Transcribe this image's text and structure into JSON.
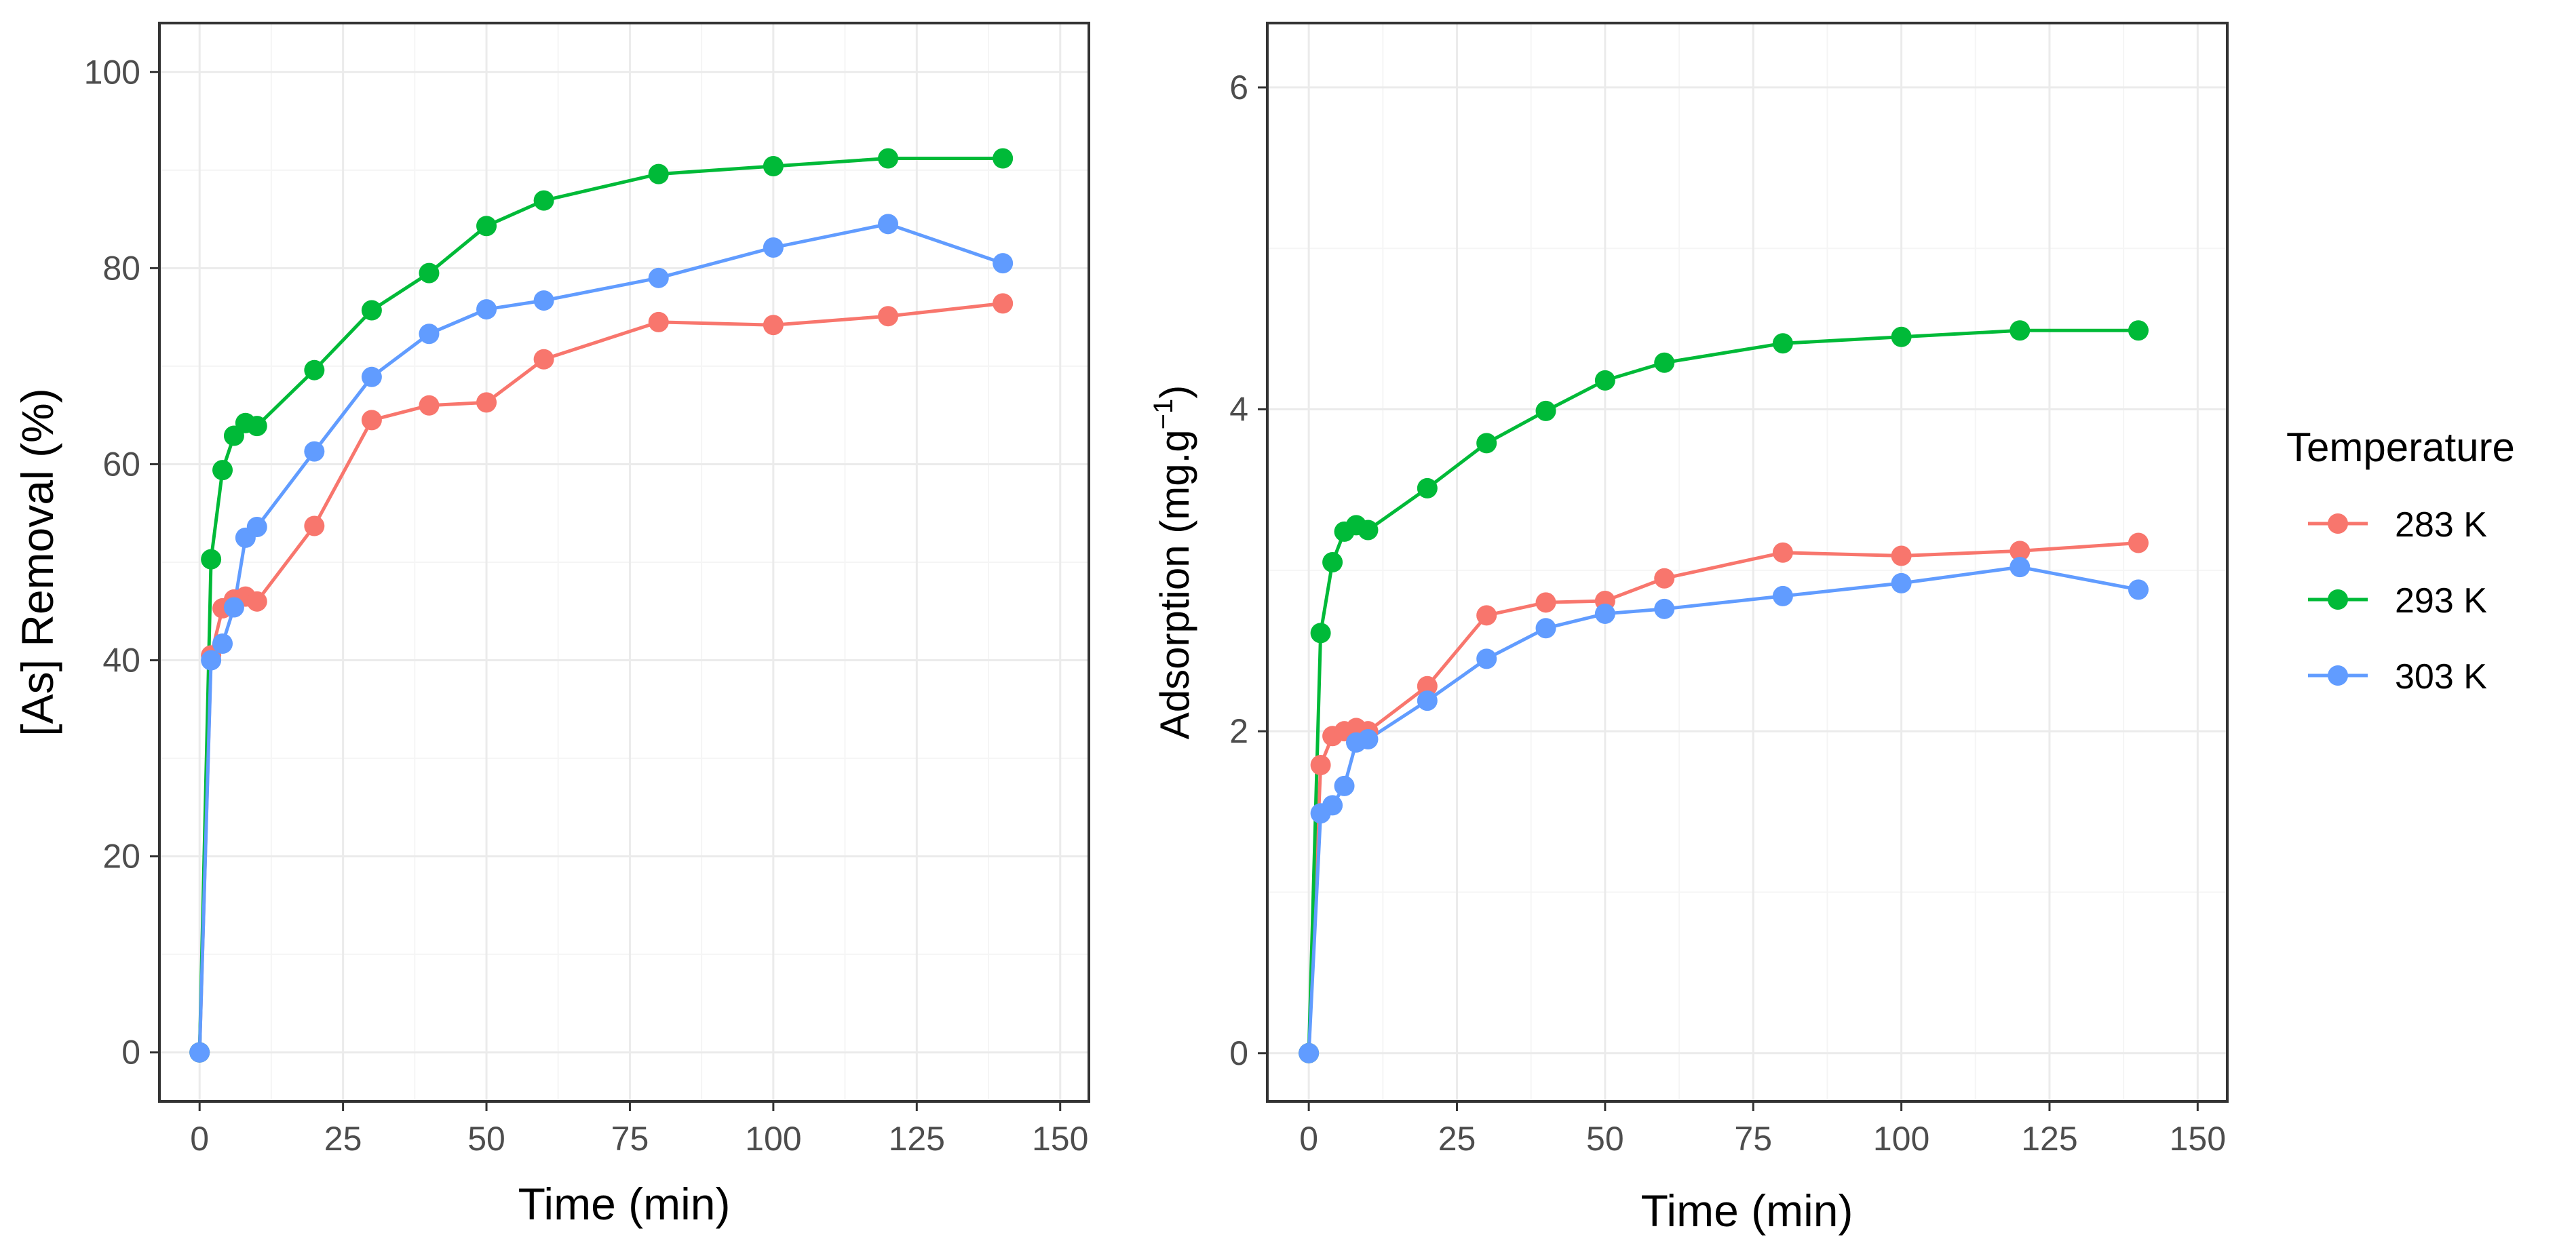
{
  "colors": {
    "series_283": "#f8766d",
    "series_293": "#00ba38",
    "series_303": "#619cff",
    "grid_major": "#ebebeb",
    "grid_minor": "#f5f5f5",
    "frame": "#333333",
    "tick_text": "#4d4d4d",
    "title_text": "#000000"
  },
  "legend": {
    "title": "Temperature",
    "items": [
      {
        "label": "283 K",
        "color_key": "series_283"
      },
      {
        "label": "293 K",
        "color_key": "series_293"
      },
      {
        "label": "303 K",
        "color_key": "series_303"
      }
    ]
  },
  "chart_data": [
    {
      "type": "line",
      "xlabel": "Time (min)",
      "ylabel": "[As] Removal (%)",
      "xlim": [
        -7,
        155
      ],
      "ylim": [
        -5,
        105
      ],
      "xticks": [
        "0",
        "25",
        "50",
        "75",
        "100",
        "125",
        "150"
      ],
      "yticks": [
        "0",
        "20",
        "40",
        "60",
        "80",
        "100"
      ],
      "grid": true,
      "series": [
        {
          "name": "283 K",
          "x": [
            0,
            2,
            4,
            6,
            8,
            10,
            20,
            30,
            40,
            50,
            60,
            80,
            100,
            120,
            140
          ],
          "y": [
            0,
            40.5,
            45.3,
            46.2,
            46.5,
            46.0,
            53.7,
            64.5,
            66.0,
            66.3,
            70.7,
            74.5,
            74.2,
            75.1,
            76.4
          ]
        },
        {
          "name": "293 K",
          "x": [
            0,
            2,
            4,
            6,
            8,
            10,
            20,
            30,
            40,
            50,
            60,
            80,
            100,
            120,
            140
          ],
          "y": [
            0,
            50.3,
            59.4,
            62.9,
            64.2,
            63.9,
            69.6,
            75.7,
            79.5,
            84.3,
            86.9,
            89.6,
            90.4,
            91.2,
            91.2
          ]
        },
        {
          "name": "303 K",
          "x": [
            0,
            2,
            4,
            6,
            8,
            10,
            20,
            30,
            40,
            50,
            60,
            80,
            100,
            120,
            140
          ],
          "y": [
            0,
            40.0,
            41.7,
            45.4,
            52.5,
            53.6,
            61.3,
            68.9,
            73.3,
            75.8,
            76.7,
            79.0,
            82.1,
            84.5,
            80.5
          ]
        }
      ]
    },
    {
      "type": "line",
      "xlabel": "Time (min)",
      "ylabel": "Adsorption (mg.g",
      "ylabel_sup": "−1",
      "ylabel_end": ")",
      "xlim": [
        -7,
        155
      ],
      "ylim": [
        -0.3,
        6.4
      ],
      "xticks": [
        "0",
        "25",
        "50",
        "75",
        "100",
        "125",
        "150"
      ],
      "yticks": [
        "0",
        "2",
        "4",
        "6"
      ],
      "grid": true,
      "series": [
        {
          "name": "283 K",
          "x": [
            0,
            2,
            4,
            6,
            8,
            10,
            20,
            30,
            40,
            50,
            60,
            80,
            100,
            120,
            140
          ],
          "y": [
            0,
            1.79,
            1.97,
            2.0,
            2.02,
            2.0,
            2.28,
            2.72,
            2.8,
            2.81,
            2.95,
            3.11,
            3.09,
            3.12,
            3.17
          ]
        },
        {
          "name": "293 K",
          "x": [
            0,
            2,
            4,
            6,
            8,
            10,
            20,
            30,
            40,
            50,
            60,
            80,
            100,
            120,
            140
          ],
          "y": [
            0,
            2.61,
            3.05,
            3.24,
            3.28,
            3.25,
            3.51,
            3.79,
            3.99,
            4.18,
            4.29,
            4.41,
            4.45,
            4.49,
            4.49
          ]
        },
        {
          "name": "303 K",
          "x": [
            0,
            2,
            4,
            6,
            8,
            10,
            20,
            30,
            40,
            50,
            60,
            80,
            100,
            120,
            140
          ],
          "y": [
            0,
            1.49,
            1.54,
            1.66,
            1.93,
            1.95,
            2.19,
            2.45,
            2.64,
            2.73,
            2.76,
            2.84,
            2.92,
            3.02,
            2.88
          ]
        }
      ]
    }
  ]
}
